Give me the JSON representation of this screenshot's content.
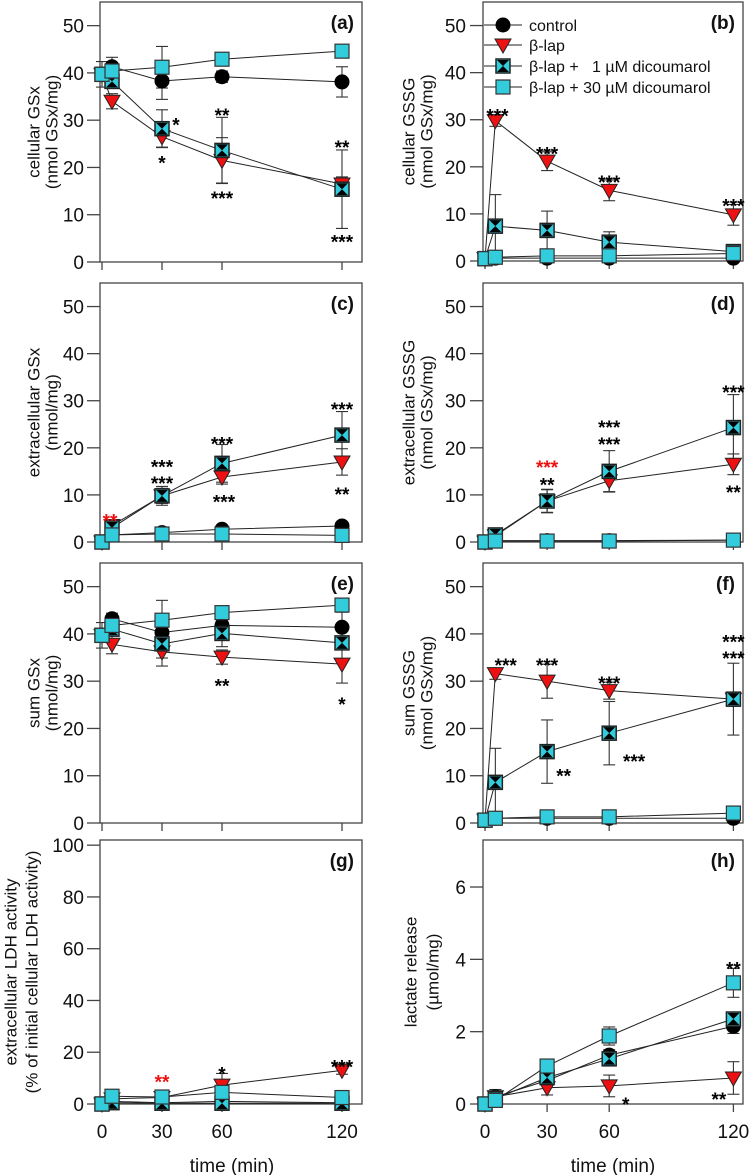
{
  "chart_data": {
    "type": "line",
    "legend": [
      {
        "name": "control",
        "marker": "circle",
        "color": "#000000"
      },
      {
        "name": "β-lap",
        "marker": "triangle-down",
        "color": "#ee1111"
      },
      {
        "name": "β-lap +   1 µM dicoumarol",
        "marker": "square-hourglass",
        "color": "#33ccdd"
      },
      {
        "name": "β-lap + 30 µM dicoumarol",
        "marker": "square",
        "color": "#33ccdd"
      }
    ],
    "x": [
      0,
      5,
      30,
      60,
      120
    ],
    "xticks": [
      0,
      30,
      60,
      120
    ],
    "xlabel": "time (min)",
    "panels": [
      {
        "label": "(a)",
        "ylabel": [
          "cellular GSx",
          "(nmol GSx/mg)"
        ],
        "ylim": [
          0,
          55
        ],
        "yticks": [
          0,
          10,
          20,
          30,
          40,
          50
        ],
        "series": [
          {
            "y": [
              39.7,
              41.3,
              38.3,
              39.2,
              38.1
            ],
            "err": [
              0,
              2.0,
              3.9,
              1.2,
              3.2
            ]
          },
          {
            "y": [
              39.7,
              34.0,
              26.5,
              21.5,
              16.5
            ],
            "err": [
              0,
              1.6,
              2.2,
              4.8,
              1.5
            ]
          },
          {
            "y": [
              39.7,
              38.2,
              28.2,
              23.6,
              15.4
            ],
            "err": [
              0,
              1.5,
              4.0,
              7.0,
              8.3
            ]
          },
          {
            "y": [
              39.7,
              40.4,
              41.2,
              42.9,
              44.6
            ],
            "err": [
              2.7,
              1.0,
              4.4,
              0.5,
              0.5
            ]
          }
        ],
        "annotations": [
          {
            "text": "*",
            "x": 37,
            "y": 29.5,
            "color": "#000000"
          },
          {
            "text": "*",
            "x": 30,
            "y": 21.5,
            "color": "#000000"
          },
          {
            "text": "**",
            "x": 60,
            "y": 31.5,
            "color": "#000000"
          },
          {
            "text": "***",
            "x": 60,
            "y": 14.0,
            "color": "#000000"
          },
          {
            "text": "**",
            "x": 120,
            "y": 24.8,
            "color": "#000000"
          },
          {
            "text": "***",
            "x": 120,
            "y": 4.8,
            "color": "#000000"
          }
        ]
      },
      {
        "label": "(b)",
        "ylabel": [
          "cellular GSSG",
          "(nmol GSx/mg)"
        ],
        "ylim": [
          0,
          55
        ],
        "yticks": [
          0,
          10,
          20,
          30,
          40,
          50
        ],
        "series": [
          {
            "y": [
              0.5,
              0.6,
              0.6,
              0.6,
              0.6
            ],
            "err": [
              0,
              0.2,
              0.2,
              0.2,
              0.2
            ]
          },
          {
            "y": [
              0.5,
              29.8,
              21.2,
              15.0,
              9.8
            ],
            "err": [
              0,
              1.2,
              2.0,
              2.2,
              2.2
            ]
          },
          {
            "y": [
              0.5,
              7.4,
              6.5,
              4.0,
              2.0
            ],
            "err": [
              0,
              6.7,
              4.1,
              2.2,
              0.5
            ]
          },
          {
            "y": [
              0.5,
              0.8,
              1.1,
              1.1,
              1.6
            ],
            "err": [
              0,
              0.3,
              1.0,
              0.3,
              0.3
            ]
          }
        ],
        "annotations": [
          {
            "text": "***",
            "x": 6,
            "y": 31.3,
            "color": "#000000"
          },
          {
            "text": "***",
            "x": 30,
            "y": 23.2,
            "color": "#000000"
          },
          {
            "text": "***",
            "x": 60,
            "y": 17.2,
            "color": "#000000"
          },
          {
            "text": "***",
            "x": 120,
            "y": 12.2,
            "color": "#000000"
          }
        ]
      },
      {
        "label": "(c)",
        "ylabel": [
          "extracellular GSx",
          "(nmol/mg)"
        ],
        "ylim": [
          0,
          55
        ],
        "yticks": [
          0,
          10,
          20,
          30,
          40,
          50
        ],
        "series": [
          {
            "y": [
              0,
              1.5,
              2.0,
              2.7,
              3.4
            ],
            "err": [
              0,
              0.2,
              0.2,
              0.2,
              0.2
            ]
          },
          {
            "y": [
              0,
              3.5,
              9.8,
              13.8,
              17.0
            ],
            "err": [
              0,
              0.5,
              1.6,
              1.5,
              2.8
            ]
          },
          {
            "y": [
              0,
              3.0,
              9.8,
              16.7,
              22.7
            ],
            "err": [
              0,
              0.5,
              2.0,
              4.0,
              5.0
            ]
          },
          {
            "y": [
              0,
              1.5,
              1.7,
              1.7,
              1.4
            ],
            "err": [
              0,
              0.2,
              0.2,
              0.2,
              0.2
            ]
          }
        ],
        "annotations": [
          {
            "text": "**",
            "x": 4,
            "y": 5.0,
            "color": "#ee1111"
          },
          {
            "text": "***",
            "x": 30,
            "y": 16.5,
            "color": "#000000"
          },
          {
            "text": "***",
            "x": 30,
            "y": 13.0,
            "color": "#000000"
          },
          {
            "text": "***",
            "x": 60,
            "y": 21.3,
            "color": "#000000"
          },
          {
            "text": "***",
            "x": 61,
            "y": 9.0,
            "color": "#000000"
          },
          {
            "text": "***",
            "x": 120,
            "y": 28.7,
            "color": "#000000"
          },
          {
            "text": "**",
            "x": 120,
            "y": 10.6,
            "color": "#000000"
          }
        ]
      },
      {
        "label": "(d)",
        "ylabel": [
          "extracellular GSSG",
          "(nmol GSx/mg)"
        ],
        "ylim": [
          0,
          55
        ],
        "yticks": [
          0,
          10,
          20,
          30,
          40,
          50
        ],
        "series": [
          {
            "y": [
              0,
              0.3,
              0.3,
              0.3,
              0.4
            ],
            "err": [
              0,
              0.1,
              0.1,
              0.1,
              0.1
            ]
          },
          {
            "y": [
              0,
              1.3,
              8.7,
              13.0,
              16.5
            ],
            "err": [
              0,
              0.3,
              2.4,
              2.3,
              2.2
            ]
          },
          {
            "y": [
              0,
              1.5,
              8.7,
              15.0,
              24.3
            ],
            "err": [
              0,
              0.3,
              2.5,
              4.4,
              7.0
            ]
          },
          {
            "y": [
              0,
              0.2,
              0.2,
              0.2,
              0.4
            ],
            "err": [
              0,
              0.1,
              0.1,
              0.1,
              0.1
            ]
          }
        ],
        "annotations": [
          {
            "text": "***",
            "x": 30,
            "y": 16.3,
            "color": "#ee1111"
          },
          {
            "text": "**",
            "x": 30,
            "y": 12.6,
            "color": "#000000"
          },
          {
            "text": "***",
            "x": 60,
            "y": 24.8,
            "color": "#000000"
          },
          {
            "text": "***",
            "x": 60,
            "y": 21.2,
            "color": "#000000"
          },
          {
            "text": "***",
            "x": 120,
            "y": 32.3,
            "color": "#000000"
          },
          {
            "text": "**",
            "x": 120,
            "y": 11.0,
            "color": "#000000"
          }
        ]
      },
      {
        "label": "(e)",
        "ylabel": [
          "sum GSx",
          "(nmol/mg)"
        ],
        "ylim": [
          0,
          55
        ],
        "yticks": [
          0,
          10,
          20,
          30,
          40,
          50
        ],
        "series": [
          {
            "y": [
              39.7,
              43.2,
              40.3,
              41.8,
              41.4
            ],
            "err": [
              0,
              1.2,
              3.7,
              2.4,
              3.2
            ]
          },
          {
            "y": [
              39.7,
              37.8,
              36.2,
              35.1,
              33.6
            ],
            "err": [
              0,
              2.0,
              3.0,
              1.5,
              4.0
            ]
          },
          {
            "y": [
              39.7,
              41.0,
              37.9,
              40.1,
              38.1
            ],
            "err": [
              0,
              1.3,
              3.0,
              2.8,
              0.5
            ]
          },
          {
            "y": [
              39.7,
              41.8,
              42.9,
              44.5,
              46.1
            ],
            "err": [
              2.7,
              1.5,
              4.2,
              0.5,
              0.5
            ]
          }
        ],
        "annotations": [
          {
            "text": "**",
            "x": 60,
            "y": 29.5,
            "color": "#000000"
          },
          {
            "text": "*",
            "x": 120,
            "y": 25.6,
            "color": "#000000"
          }
        ]
      },
      {
        "label": "(f)",
        "ylabel": [
          "sum GSSG",
          "(nmol GSx/mg)"
        ],
        "ylim": [
          0,
          55
        ],
        "yticks": [
          0,
          10,
          20,
          30,
          40,
          50
        ],
        "series": [
          {
            "y": [
              0.6,
              1.0,
              1.0,
              1.0,
              1.0
            ],
            "err": [
              0,
              0.2,
              0.2,
              0.2,
              0.2
            ]
          },
          {
            "y": [
              0.6,
              31.6,
              30.0,
              28.0,
              26.2
            ],
            "err": [
              0,
              1.2,
              3.6,
              1.8,
              1.5
            ]
          },
          {
            "y": [
              0.6,
              8.6,
              15.1,
              19.0,
              26.2
            ],
            "err": [
              0,
              7.2,
              6.7,
              6.7,
              7.6
            ]
          },
          {
            "y": [
              0.6,
              1.0,
              1.3,
              1.3,
              2.1
            ],
            "err": [
              0,
              0.2,
              0.2,
              0.2,
              0.2
            ]
          }
        ],
        "annotations": [
          {
            "text": "***",
            "x": 10,
            "y": 33.8,
            "color": "#000000"
          },
          {
            "text": "***",
            "x": 30,
            "y": 33.8,
            "color": "#000000"
          },
          {
            "text": "***",
            "x": 60,
            "y": 30.0,
            "color": "#000000"
          },
          {
            "text": "**",
            "x": 38,
            "y": 10.5,
            "color": "#000000"
          },
          {
            "text": "***",
            "x": 72,
            "y": 13.5,
            "color": "#000000"
          },
          {
            "text": "***",
            "x": 120,
            "y": 38.8,
            "color": "#000000"
          },
          {
            "text": "***",
            "x": 120,
            "y": 35.3,
            "color": "#000000"
          }
        ]
      },
      {
        "label": "(g)",
        "ylabel": [
          "extracellular LDH activity",
          "(% of initial cellular LDH activity)"
        ],
        "ylim": [
          0,
          102
        ],
        "yticks": [
          0,
          20,
          40,
          60,
          80,
          100
        ],
        "xtick_labels": [
          "0",
          "30",
          "60",
          "120"
        ],
        "show_xlabel": true,
        "series": [
          {
            "y": [
              0,
              1.0,
              0.5,
              1.0,
              0.5
            ],
            "err": [
              0,
              0.5,
              0.3,
              0.5,
              0.3
            ]
          },
          {
            "y": [
              0,
              2.0,
              2.5,
              7.3,
              13.0
            ],
            "err": [
              0,
              1.0,
              1.0,
              4.5,
              1.5
            ]
          },
          {
            "y": [
              0,
              0.5,
              0.3,
              0.3,
              0.3
            ],
            "err": [
              0,
              0.3,
              0.3,
              0.3,
              0.3
            ]
          },
          {
            "y": [
              0,
              3.0,
              2.7,
              4.5,
              2.5
            ],
            "err": [
              0,
              2.0,
              1.0,
              1.0,
              1.0
            ]
          }
        ],
        "annotations": [
          {
            "text": "**",
            "x": 30,
            "y": 9.5,
            "color": "#ee1111"
          },
          {
            "text": "*",
            "x": 60,
            "y": 12.5,
            "color": "#000000"
          },
          {
            "text": "***",
            "x": 120,
            "y": 15.2,
            "color": "#000000"
          }
        ]
      },
      {
        "label": "(h)",
        "ylabel": [
          "lactate release",
          "(µmol/mg)"
        ],
        "ylim": [
          0,
          7.3
        ],
        "yticks": [
          0,
          2,
          4,
          6
        ],
        "xtick_labels": [
          "0",
          "30",
          "60",
          "120"
        ],
        "show_xlabel": true,
        "series": [
          {
            "y": [
              0,
              0.2,
              0.65,
              1.35,
              2.15
            ],
            "err": [
              0,
              0.2,
              0.1,
              0.15,
              0.2
            ]
          },
          {
            "y": [
              0,
              0.2,
              0.45,
              0.5,
              0.72
            ],
            "err": [
              0,
              0.2,
              0.2,
              0.3,
              0.45
            ]
          },
          {
            "y": [
              0,
              0.15,
              0.73,
              1.25,
              2.35
            ],
            "err": [
              0,
              0.1,
              0.1,
              0.2,
              0.15
            ]
          },
          {
            "y": [
              0,
              0.1,
              1.05,
              1.88,
              3.35
            ],
            "err": [
              0,
              0.1,
              0.1,
              0.25,
              0.4
            ]
          }
        ],
        "annotations": [
          {
            "text": "*",
            "x": 68,
            "y": 0.05,
            "color": "#000000"
          },
          {
            "text": "**",
            "x": 120,
            "y": 3.8,
            "color": "#000000"
          },
          {
            "text": "**",
            "x": 113,
            "y": 0.2,
            "color": "#000000"
          }
        ]
      }
    ]
  }
}
